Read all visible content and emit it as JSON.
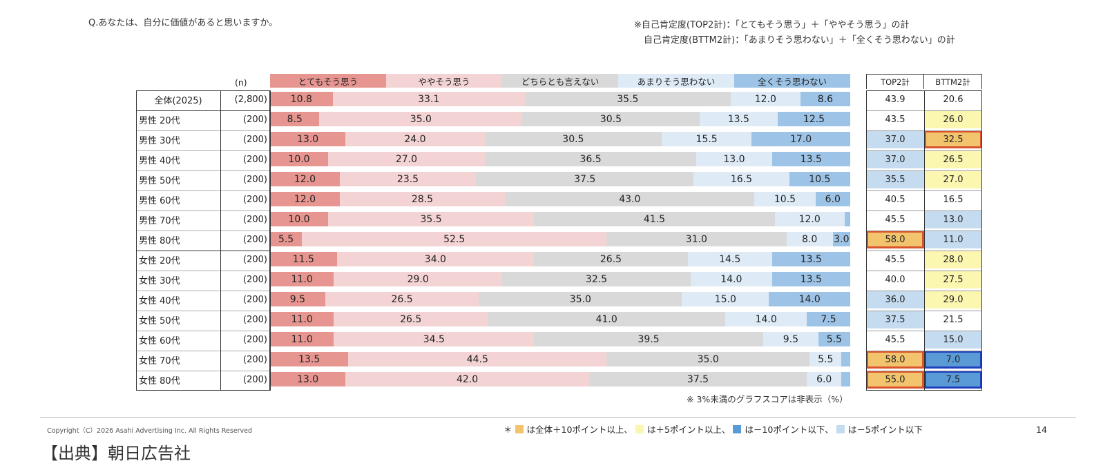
{
  "question": "Q.あなたは、自分に価値があると思いますか。",
  "notes": [
    "※自己肯定度(TOP2計)：「とてもそう思う」＋「ややそう思う」の計",
    "自己肯定度(BTTM2計)：「あまりそう思わない」＋「全くそう思わない」の計"
  ],
  "n_header": "(n)",
  "score_headers": [
    "TOP2計",
    "BTTM2計"
  ],
  "chart_data": {
    "type": "bar",
    "orientation": "horizontal-stacked-100",
    "title": "Q.あなたは、自分に価値があると思いますか。",
    "unit": "%",
    "xlim": [
      0,
      100
    ],
    "series_names": [
      "とてもそう思う",
      "ややそう思う",
      "どちらとも言えない",
      "あまりそう思わない",
      "全くそう思わない"
    ],
    "series_colors": [
      "#e69590",
      "#f3d3d3",
      "#d9d9d9",
      "#deebf7",
      "#9dc3e6"
    ],
    "rows": [
      {
        "label": "全体(2025)",
        "n": "(2,800)",
        "values": [
          10.8,
          33.1,
          35.5,
          12.0,
          8.6
        ],
        "top2": "43.9",
        "bttm2": "20.6",
        "top2_hl": "none",
        "bttm2_hl": "none",
        "total": true
      },
      {
        "label": "男性 20代",
        "n": "(200)",
        "values": [
          8.5,
          35.0,
          30.5,
          13.5,
          12.5
        ],
        "top2": "43.5",
        "bttm2": "26.0",
        "top2_hl": "none",
        "bttm2_hl": "plus5"
      },
      {
        "label": "男性 30代",
        "n": "(200)",
        "values": [
          13.0,
          24.0,
          30.5,
          15.5,
          17.0
        ],
        "top2": "37.0",
        "bttm2": "32.5",
        "top2_hl": "minus5",
        "bttm2_hl": "plus10"
      },
      {
        "label": "男性 40代",
        "n": "(200)",
        "values": [
          10.0,
          27.0,
          36.5,
          13.0,
          13.5
        ],
        "top2": "37.0",
        "bttm2": "26.5",
        "top2_hl": "minus5",
        "bttm2_hl": "plus5"
      },
      {
        "label": "男性 50代",
        "n": "(200)",
        "values": [
          12.0,
          23.5,
          37.5,
          16.5,
          10.5
        ],
        "top2": "35.5",
        "bttm2": "27.0",
        "top2_hl": "minus5",
        "bttm2_hl": "plus5"
      },
      {
        "label": "男性 60代",
        "n": "(200)",
        "values": [
          12.0,
          28.5,
          43.0,
          10.5,
          6.0
        ],
        "top2": "40.5",
        "bttm2": "16.5",
        "top2_hl": "none",
        "bttm2_hl": "none"
      },
      {
        "label": "男性 70代",
        "n": "(200)",
        "values": [
          10.0,
          35.5,
          41.5,
          12.0,
          1.0
        ],
        "hide": [
          false,
          false,
          false,
          false,
          true
        ],
        "top2": "45.5",
        "bttm2": "13.0",
        "top2_hl": "none",
        "bttm2_hl": "minus5"
      },
      {
        "label": "男性 80代",
        "n": "(200)",
        "values": [
          5.5,
          52.5,
          31.0,
          8.0,
          3.0
        ],
        "top2": "58.0",
        "bttm2": "11.0",
        "top2_hl": "plus10",
        "bttm2_hl": "minus5"
      },
      {
        "label": "女性 20代",
        "n": "(200)",
        "values": [
          11.5,
          34.0,
          26.5,
          14.5,
          13.5
        ],
        "top2": "45.5",
        "bttm2": "28.0",
        "top2_hl": "none",
        "bttm2_hl": "plus5"
      },
      {
        "label": "女性 30代",
        "n": "(200)",
        "values": [
          11.0,
          29.0,
          32.5,
          14.0,
          13.5
        ],
        "top2": "40.0",
        "bttm2": "27.5",
        "top2_hl": "none",
        "bttm2_hl": "plus5"
      },
      {
        "label": "女性 40代",
        "n": "(200)",
        "values": [
          9.5,
          26.5,
          35.0,
          15.0,
          14.0
        ],
        "top2": "36.0",
        "bttm2": "29.0",
        "top2_hl": "minus5",
        "bttm2_hl": "plus5"
      },
      {
        "label": "女性 50代",
        "n": "(200)",
        "values": [
          11.0,
          26.5,
          41.0,
          14.0,
          7.5
        ],
        "top2": "37.5",
        "bttm2": "21.5",
        "top2_hl": "minus5",
        "bttm2_hl": "none"
      },
      {
        "label": "女性 60代",
        "n": "(200)",
        "values": [
          11.0,
          34.5,
          39.5,
          9.5,
          5.5
        ],
        "top2": "45.5",
        "bttm2": "15.0",
        "top2_hl": "none",
        "bttm2_hl": "minus5"
      },
      {
        "label": "女性 70代",
        "n": "(200)",
        "values": [
          13.5,
          44.5,
          35.0,
          5.5,
          1.5
        ],
        "hide": [
          false,
          false,
          false,
          false,
          true
        ],
        "top2": "58.0",
        "bttm2": "7.0",
        "top2_hl": "plus10",
        "bttm2_hl": "minus10"
      },
      {
        "label": "女性 80代",
        "n": "(200)",
        "values": [
          13.0,
          42.0,
          37.5,
          6.0,
          1.5
        ],
        "hide": [
          false,
          false,
          false,
          false,
          true
        ],
        "top2": "55.0",
        "bttm2": "7.5",
        "top2_hl": "plus10",
        "bttm2_hl": "minus10"
      }
    ]
  },
  "highlight_colors": {
    "plus10": "#f2c46e",
    "plus5": "#fbf6b0",
    "minus10": "#5b9bd5",
    "minus5": "#c5dcf0",
    "none": "#ffffff",
    "border_orange": "#d9532c",
    "border_blue": "#1f3fbf"
  },
  "footnote": "※ 3%未満のグラフスコアは非表示（%）",
  "highlight_legend": {
    "prefix": "＊",
    "items": [
      {
        "key": "plus10",
        "text": "は全体＋10ポイント以上、"
      },
      {
        "key": "plus5",
        "text": "は＋5ポイント以上、"
      },
      {
        "key": "minus10",
        "text": "は－10ポイント以下、"
      },
      {
        "key": "minus5",
        "text": "は－5ポイント以下"
      }
    ]
  },
  "copyright": "Copyright（C）2026 Asahi Advertising Inc. All Rights Reserved",
  "page_number": "14",
  "source": "【出典】朝日広告社"
}
